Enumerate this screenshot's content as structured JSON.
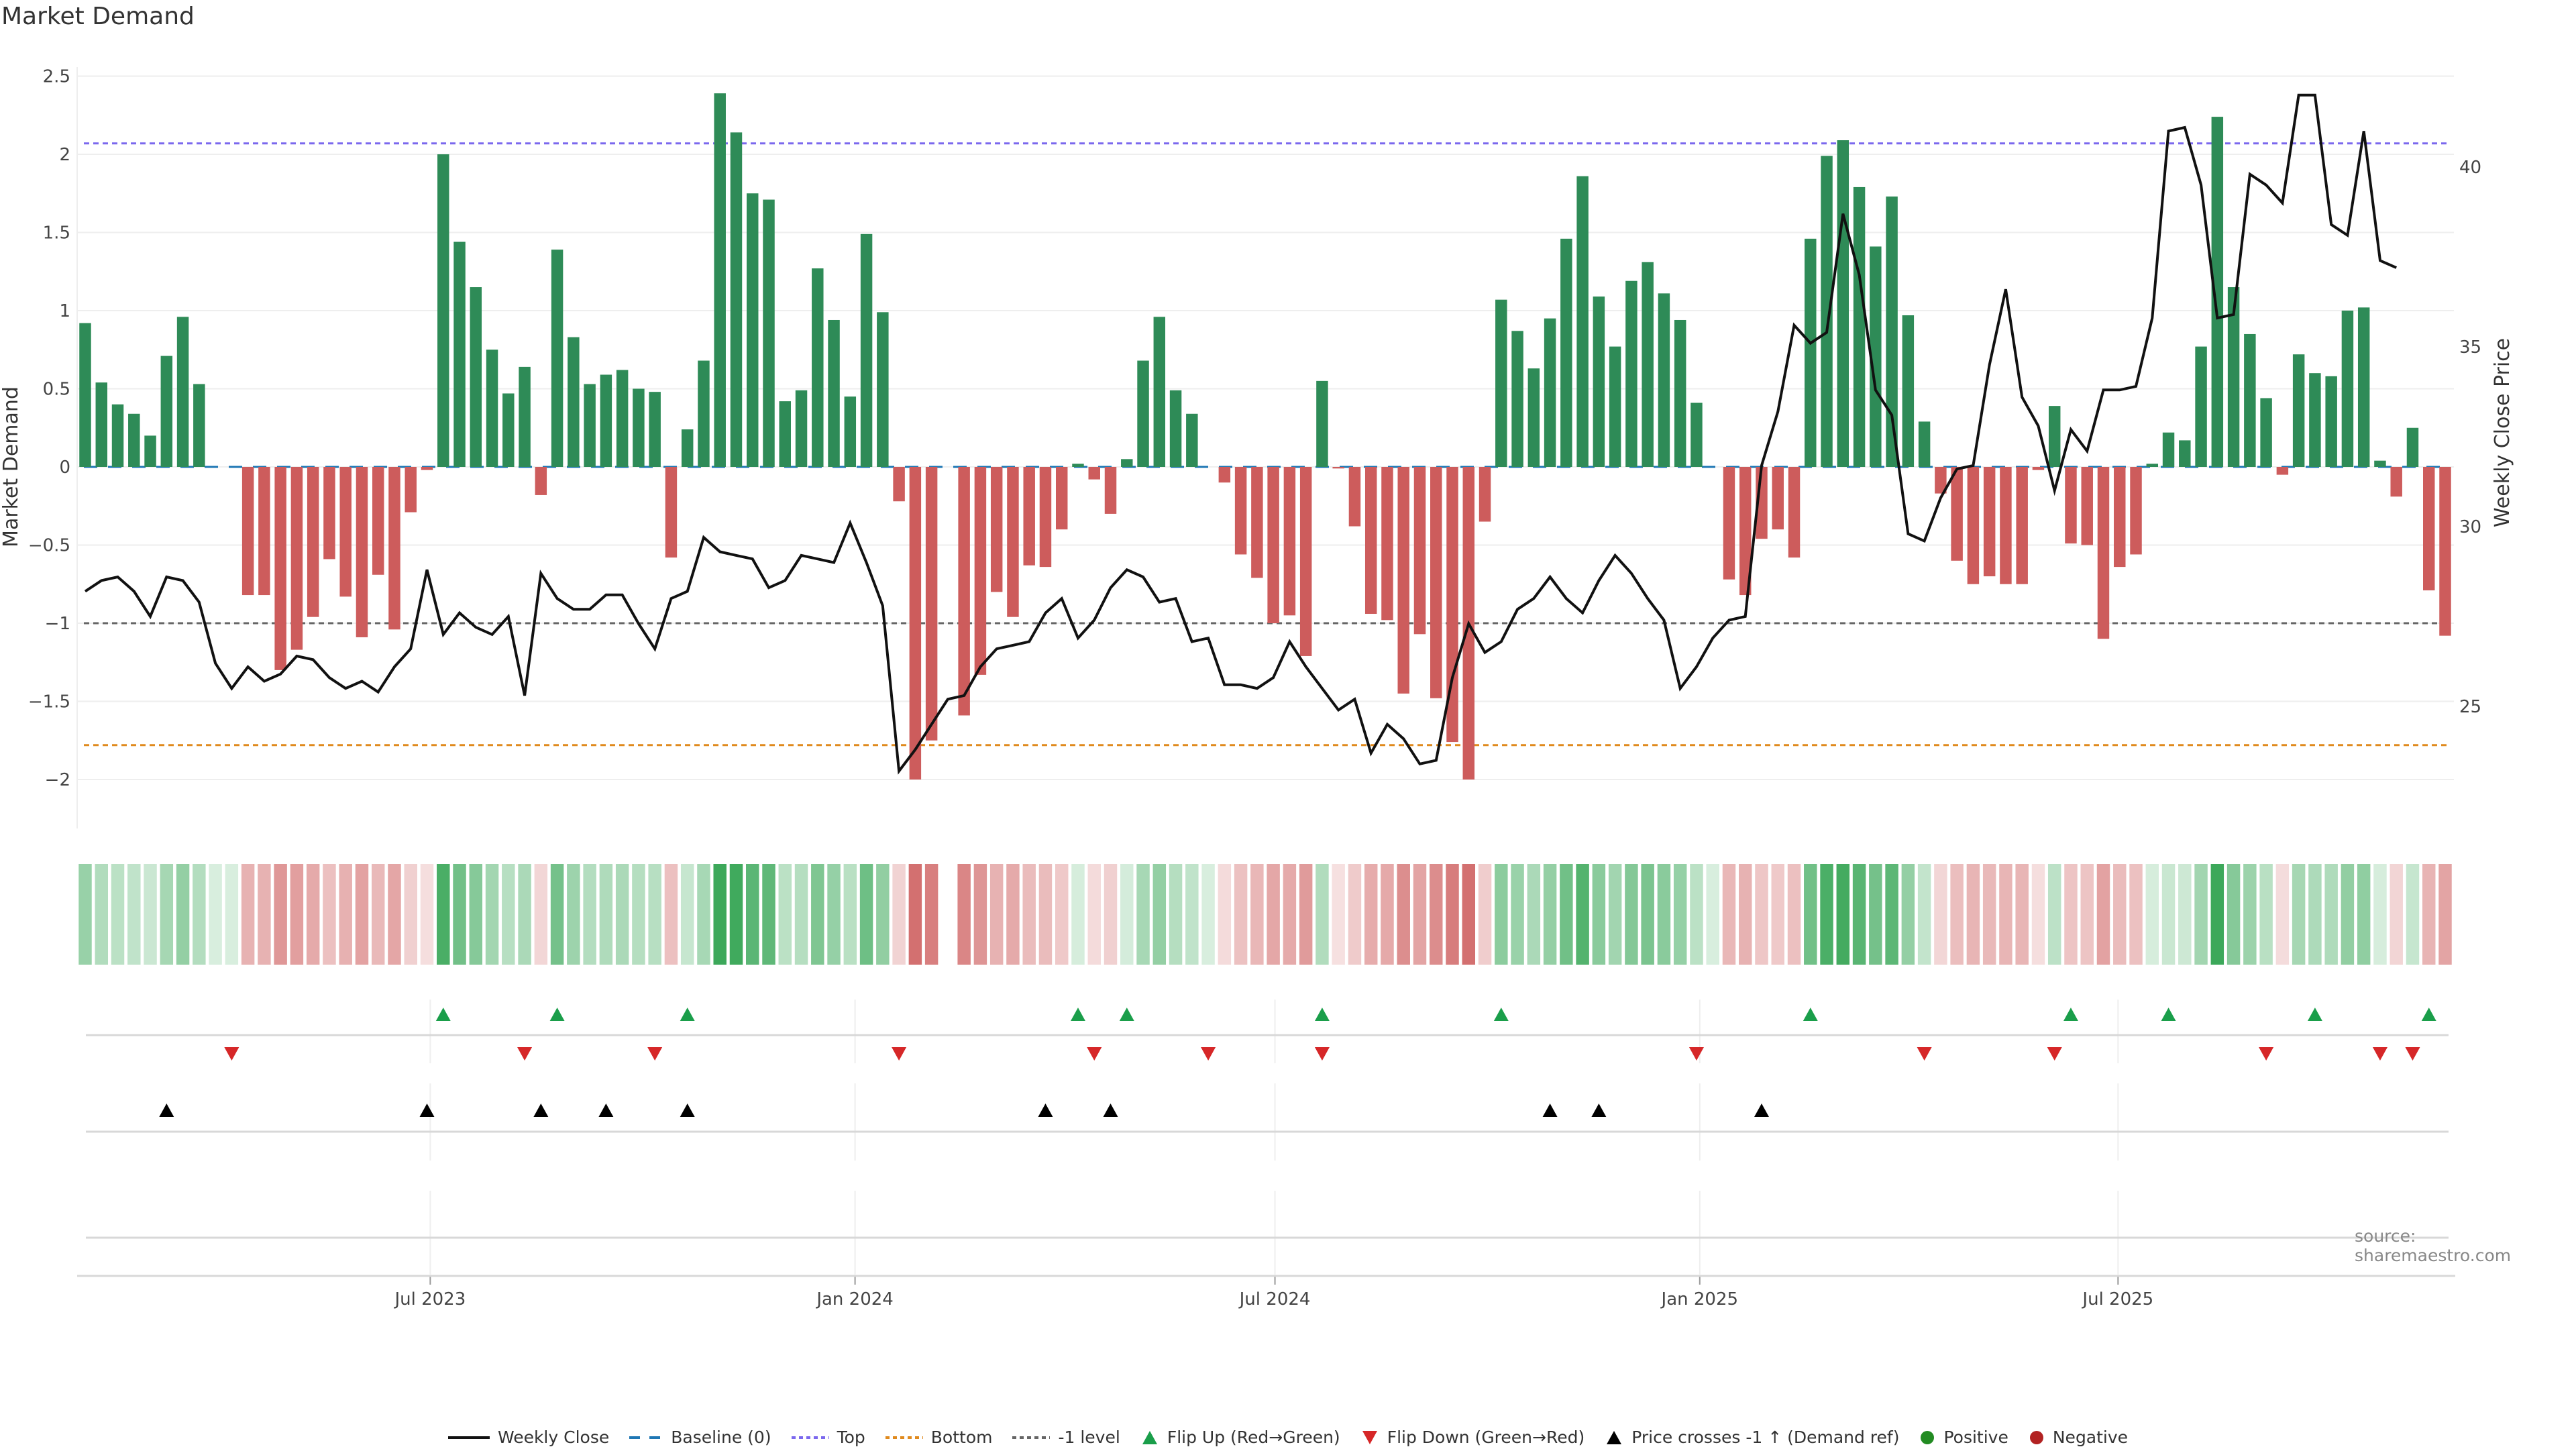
{
  "title": "Market Demand",
  "source": "source: sharemaestro.com",
  "colors": {
    "positive": "#2e8b57",
    "negative": "#cd5c5c",
    "price": "#111111",
    "baseline": "#1f77b4",
    "top": "#7b68ee",
    "bottom": "#e08a1e",
    "minus1": "#666666",
    "flip_up": "#1a9e4a",
    "flip_down": "#d62728",
    "cross": "#000000",
    "legend_pos": "#228b22",
    "legend_neg": "#b22222"
  },
  "legend": [
    {
      "label": "Weekly Close",
      "icon": "solid-line"
    },
    {
      "label": "Baseline (0)",
      "icon": "dashed-line"
    },
    {
      "label": "Top",
      "icon": "dotted-line"
    },
    {
      "label": "Bottom",
      "icon": "dotted-line"
    },
    {
      "label": "-1 level",
      "icon": "dotted-line"
    },
    {
      "label": "Flip Up (Red→Green)",
      "icon": "triangle-up"
    },
    {
      "label": "Flip Down (Green→Red)",
      "icon": "triangle-down"
    },
    {
      "label": "Price crosses -1 ↑ (Demand ref)",
      "icon": "triangle-up"
    },
    {
      "label": "Positive",
      "icon": "circle"
    },
    {
      "label": "Negative",
      "icon": "circle"
    }
  ],
  "chart_data": {
    "type": "bar",
    "title": "Market Demand",
    "ylabel": "Market Demand",
    "y2label": "Weekly Close Price",
    "ylim": [
      -2.3,
      2.6
    ],
    "y2lim": [
      21.5,
      43.5
    ],
    "yticks": [
      "2.5",
      "2",
      "1.5",
      "1",
      "0.5",
      "0",
      "−0.5",
      "−1",
      "−1.5",
      "−2"
    ],
    "ytick_values": [
      2.5,
      2,
      1.5,
      1,
      0.5,
      0,
      -0.5,
      -1,
      -1.5,
      -2
    ],
    "y2ticks": [
      "40",
      "35",
      "30",
      "25"
    ],
    "y2tick_values": [
      40,
      35,
      30,
      25
    ],
    "xticks": [
      "Jul 2023",
      "Jan 2024",
      "Jul 2024",
      "Jan 2025",
      "Jul 2025"
    ],
    "xtick_index": [
      21.2,
      47.3,
      73.1,
      99.2,
      124.9
    ],
    "levels": {
      "top": 2.07,
      "bottom": -1.78,
      "minus1": -1.0,
      "baseline": 0
    },
    "demand": [
      0.92,
      0.54,
      0.4,
      0.34,
      0.2,
      0.71,
      0.96,
      0.53,
      0.0,
      0.0,
      -0.82,
      -0.82,
      -1.3,
      -1.17,
      -0.96,
      -0.59,
      -0.83,
      -1.09,
      -0.69,
      -1.04,
      -0.29,
      -0.02,
      2.0,
      1.44,
      1.15,
      0.75,
      0.47,
      0.64,
      -0.18,
      1.39,
      0.83,
      0.53,
      0.59,
      0.62,
      0.5,
      0.48,
      -0.58,
      0.24,
      0.68,
      2.39,
      2.14,
      1.75,
      1.71,
      0.42,
      0.49,
      1.27,
      0.94,
      0.45,
      1.49,
      0.99,
      -0.22,
      -2.0,
      -1.75,
      0.0,
      -1.59,
      -1.33,
      -0.8,
      -0.96,
      -0.63,
      -0.64,
      -0.4,
      0.02,
      -0.08,
      -0.3,
      0.05,
      0.68,
      0.96,
      0.49,
      0.34,
      0.0,
      -0.1,
      -0.56,
      -0.71,
      -1.0,
      -0.95,
      -1.21,
      0.55,
      -0.01,
      -0.38,
      -0.94,
      -0.98,
      -1.45,
      -1.07,
      -1.48,
      -1.76,
      -2.0,
      -0.35,
      1.07,
      0.87,
      0.63,
      0.95,
      1.46,
      1.86,
      1.09,
      0.77,
      1.19,
      1.31,
      1.11,
      0.94,
      0.41,
      0.0,
      -0.72,
      -0.82,
      -0.46,
      -0.4,
      -0.58,
      1.46,
      1.99,
      2.09,
      1.79,
      1.41,
      1.73,
      0.97,
      0.29,
      -0.17,
      -0.6,
      -0.75,
      -0.7,
      -0.75,
      -0.75,
      -0.02,
      0.39,
      -0.49,
      -0.5,
      -1.1,
      -0.64,
      -0.56,
      0.02,
      0.22,
      0.17,
      0.77,
      2.24,
      1.15,
      0.85,
      0.44,
      -0.05,
      0.72,
      0.6,
      0.58,
      1.0,
      1.02,
      0.04,
      -0.19,
      0.25,
      -0.79,
      -1.08
    ],
    "price": [
      28.2,
      28.5,
      28.6,
      28.2,
      27.5,
      28.6,
      28.5,
      27.9,
      26.2,
      25.5,
      26.1,
      25.7,
      25.9,
      26.4,
      26.3,
      25.8,
      25.5,
      25.7,
      25.4,
      26.1,
      26.6,
      28.8,
      27.0,
      27.6,
      27.2,
      27.0,
      27.5,
      25.3,
      28.7,
      28.0,
      27.7,
      27.7,
      28.1,
      28.1,
      27.3,
      26.6,
      28.0,
      28.2,
      29.7,
      29.3,
      29.2,
      29.1,
      28.3,
      28.5,
      29.2,
      29.1,
      29.0,
      30.1,
      29.0,
      27.8,
      23.2,
      23.8,
      24.5,
      25.2,
      25.3,
      26.1,
      26.6,
      26.7,
      26.8,
      27.6,
      28.0,
      26.9,
      27.4,
      28.3,
      28.8,
      28.6,
      27.9,
      28.0,
      26.8,
      26.9,
      25.6,
      25.6,
      25.5,
      25.8,
      26.8,
      26.1,
      25.5,
      24.9,
      25.2,
      23.7,
      24.5,
      24.1,
      23.4,
      23.5,
      25.8,
      27.3,
      26.5,
      26.8,
      27.7,
      28.0,
      28.6,
      28.0,
      27.6,
      28.5,
      29.2,
      28.7,
      28.0,
      27.4,
      25.5,
      26.1,
      26.9,
      27.4,
      27.5,
      31.7,
      33.2,
      35.6,
      35.1,
      35.4,
      38.7,
      37.0,
      33.8,
      33.1,
      29.8,
      29.6,
      30.8,
      31.6,
      31.7,
      34.5,
      36.6,
      33.6,
      32.8,
      31.0,
      32.7,
      32.1,
      33.8,
      33.8,
      33.9,
      35.8,
      41.0,
      41.1,
      39.5,
      35.8,
      35.9,
      39.8,
      39.5,
      39.0,
      42.0,
      42.0,
      38.4,
      38.1,
      41.0,
      37.4,
      37.2
    ],
    "flip_up_index": [
      22,
      29,
      37,
      61,
      64,
      76,
      87,
      106,
      122,
      128,
      137,
      144
    ],
    "flip_down_index": [
      9,
      27,
      35,
      50,
      62,
      69,
      76,
      99,
      113,
      121,
      134,
      141,
      143
    ],
    "cross_index": [
      5,
      21,
      28,
      32,
      37,
      59,
      63,
      90,
      93,
      103
    ]
  }
}
